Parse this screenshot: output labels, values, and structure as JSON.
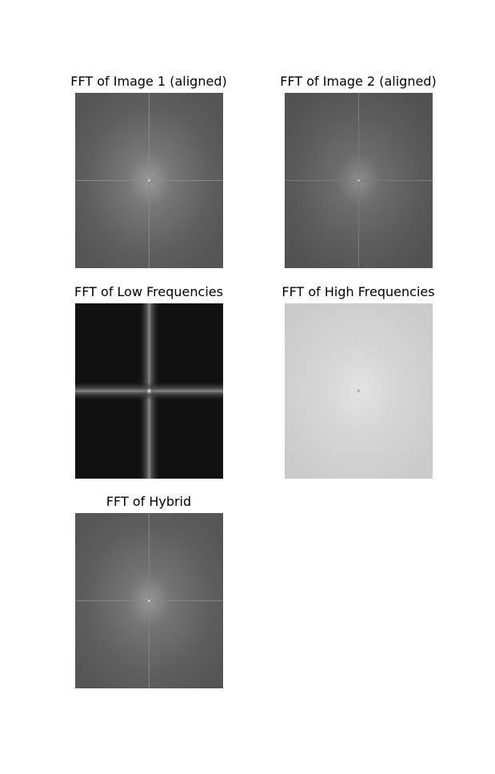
{
  "panels": [
    {
      "title": "FFT of Image 1 (aligned)",
      "style": "gray-spectrum"
    },
    {
      "title": "FFT of Image 2 (aligned)",
      "style": "gray-spectrum"
    },
    {
      "title": "FFT of Low Frequencies",
      "style": "dark-cross-spectrum"
    },
    {
      "title": "FFT of High Frequencies",
      "style": "light-flat-spectrum"
    },
    {
      "title": "FFT of Hybrid",
      "style": "gray-spectrum"
    }
  ],
  "colors": {
    "gray_background": "#5a5a5a",
    "dark_background": "#111111",
    "light_background": "#cfcfcf",
    "page_background": "#ffffff"
  }
}
